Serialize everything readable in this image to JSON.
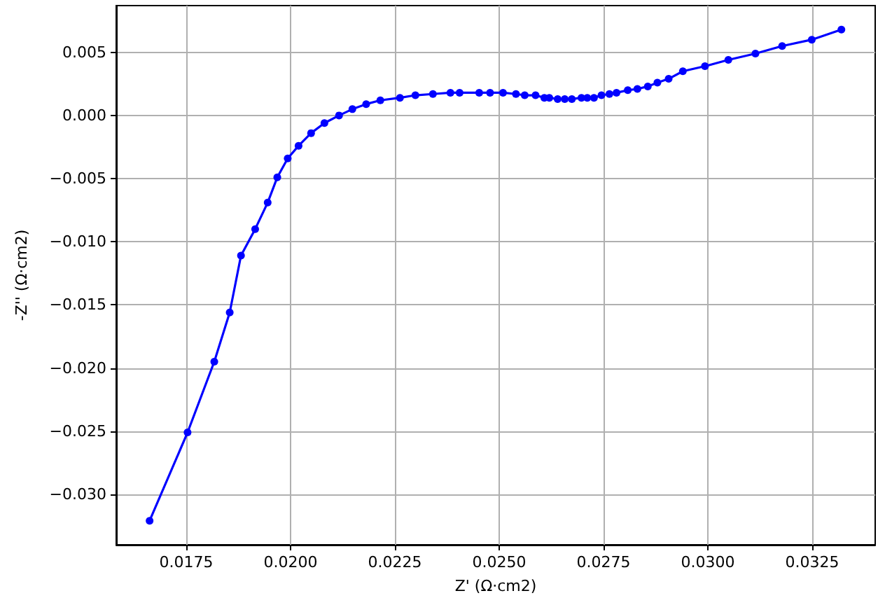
{
  "chart_data": {
    "type": "line",
    "xlabel": "Z' (Ω·cm2)",
    "ylabel": "-Z'' (Ω·cm2)",
    "x": [
      0.01662,
      0.01753,
      0.01817,
      0.01854,
      0.01881,
      0.01915,
      0.01945,
      0.01968,
      0.01993,
      0.02019,
      0.02049,
      0.02081,
      0.02116,
      0.02148,
      0.02181,
      0.02215,
      0.02262,
      0.02299,
      0.02341,
      0.02383,
      0.02405,
      0.02452,
      0.02478,
      0.02509,
      0.0254,
      0.02561,
      0.02587,
      0.02608,
      0.0262,
      0.0264,
      0.02657,
      0.02674,
      0.02697,
      0.02711,
      0.02727,
      0.02745,
      0.02764,
      0.02781,
      0.02808,
      0.02831,
      0.02856,
      0.02879,
      0.02906,
      0.0294,
      0.02993,
      0.03049,
      0.03114,
      0.03178,
      0.03249,
      0.0332
    ],
    "values": [
      -0.0321,
      -0.0251,
      -0.0195,
      -0.0156,
      -0.0111,
      -0.009,
      -0.0069,
      -0.0049,
      -0.0034,
      -0.0024,
      -0.0014,
      -0.0006,
      0,
      0.0005,
      0.0009,
      0.0012,
      0.0014,
      0.0016,
      0.0017,
      0.0018,
      0.0018,
      0.0018,
      0.0018,
      0.0018,
      0.0017,
      0.0016,
      0.0016,
      0.0014,
      0.0014,
      0.0013,
      0.0013,
      0.0013,
      0.0014,
      0.0014,
      0.0014,
      0.0016,
      0.0017,
      0.0018,
      0.002,
      0.0021,
      0.0023,
      0.0026,
      0.0029,
      0.0035,
      0.0039,
      0.0044,
      0.0049,
      0.0055,
      0.006,
      0.0068
    ],
    "color": "#0000ff",
    "marker": "circle",
    "line_style": "solid",
    "grid": true,
    "xlim": [
      0.01582,
      0.03401
    ],
    "ylim": [
      -0.034,
      0.0087
    ],
    "xticks": [
      {
        "value": 0.0175,
        "label": "0.0175"
      },
      {
        "value": 0.02,
        "label": "0.0200"
      },
      {
        "value": 0.0225,
        "label": "0.0225"
      },
      {
        "value": 0.025,
        "label": "0.0250"
      },
      {
        "value": 0.0275,
        "label": "0.0275"
      },
      {
        "value": 0.03,
        "label": "0.0300"
      },
      {
        "value": 0.0325,
        "label": "0.0325"
      }
    ],
    "yticks": [
      {
        "value": -0.03,
        "label": "−0.030"
      },
      {
        "value": -0.025,
        "label": "−0.025"
      },
      {
        "value": -0.02,
        "label": "−0.020"
      },
      {
        "value": -0.015,
        "label": "−0.015"
      },
      {
        "value": -0.01,
        "label": "−0.010"
      },
      {
        "value": -0.005,
        "label": "−0.005"
      },
      {
        "value": 0,
        "label": "0.000"
      },
      {
        "value": 0.005,
        "label": "0.005"
      }
    ]
  }
}
